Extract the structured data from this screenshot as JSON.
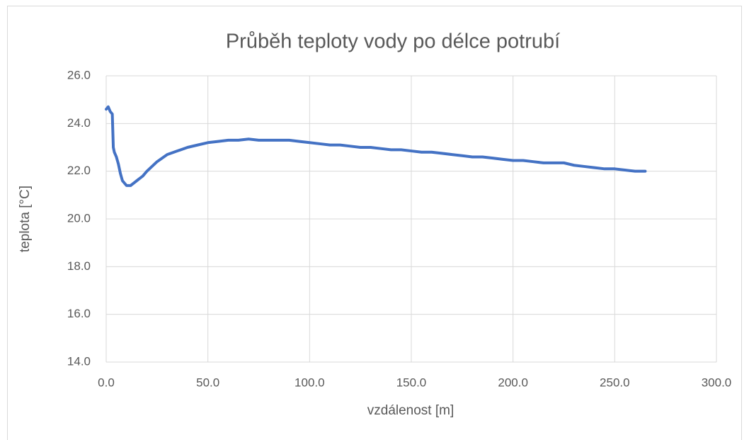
{
  "chart_data": {
    "type": "line",
    "title": "Průběh teploty vody po délce potrubí",
    "x_label": "vzdálenost [m]",
    "y_label": "teplota [°C]",
    "color": "#4472c4",
    "grid": true,
    "x": [
      0,
      1,
      2,
      3,
      3.5,
      4,
      5,
      6,
      7,
      8,
      10,
      12,
      15,
      18,
      20,
      25,
      30,
      35,
      40,
      45,
      50,
      55,
      60,
      65,
      70,
      75,
      80,
      85,
      90,
      95,
      100,
      105,
      110,
      115,
      120,
      125,
      130,
      135,
      140,
      145,
      150,
      155,
      160,
      165,
      170,
      175,
      180,
      185,
      190,
      195,
      200,
      205,
      210,
      215,
      220,
      225,
      230,
      235,
      240,
      245,
      250,
      255,
      260,
      265
    ],
    "values": [
      24.6,
      24.7,
      24.5,
      24.4,
      23.0,
      22.8,
      22.6,
      22.3,
      21.9,
      21.6,
      21.4,
      21.4,
      21.6,
      21.8,
      22.0,
      22.4,
      22.7,
      22.85,
      23.0,
      23.1,
      23.2,
      23.25,
      23.3,
      23.3,
      23.35,
      23.3,
      23.3,
      23.3,
      23.3,
      23.25,
      23.2,
      23.15,
      23.1,
      23.1,
      23.05,
      23.0,
      23.0,
      22.95,
      22.9,
      22.9,
      22.85,
      22.8,
      22.8,
      22.75,
      22.7,
      22.65,
      22.6,
      22.6,
      22.55,
      22.5,
      22.45,
      22.45,
      22.4,
      22.35,
      22.35,
      22.35,
      22.25,
      22.2,
      22.15,
      22.1,
      22.1,
      22.05,
      22.0,
      22.0
    ],
    "xlim": [
      0,
      300
    ],
    "xticks": [
      {
        "value": 0,
        "label": "0.0"
      },
      {
        "value": 50,
        "label": "50.0"
      },
      {
        "value": 100,
        "label": "100.0"
      },
      {
        "value": 150,
        "label": "150.0"
      },
      {
        "value": 200,
        "label": "200.0"
      },
      {
        "value": 250,
        "label": "250.0"
      },
      {
        "value": 300,
        "label": "300.0"
      }
    ],
    "ylim": [
      14,
      26
    ],
    "yticks": [
      {
        "value": 14,
        "label": "14.0"
      },
      {
        "value": 16,
        "label": "16.0"
      },
      {
        "value": 18,
        "label": "18.0"
      },
      {
        "value": 20,
        "label": "20.0"
      },
      {
        "value": 22,
        "label": "22.0"
      },
      {
        "value": 24,
        "label": "24.0"
      },
      {
        "value": 26,
        "label": "26.0"
      }
    ]
  }
}
